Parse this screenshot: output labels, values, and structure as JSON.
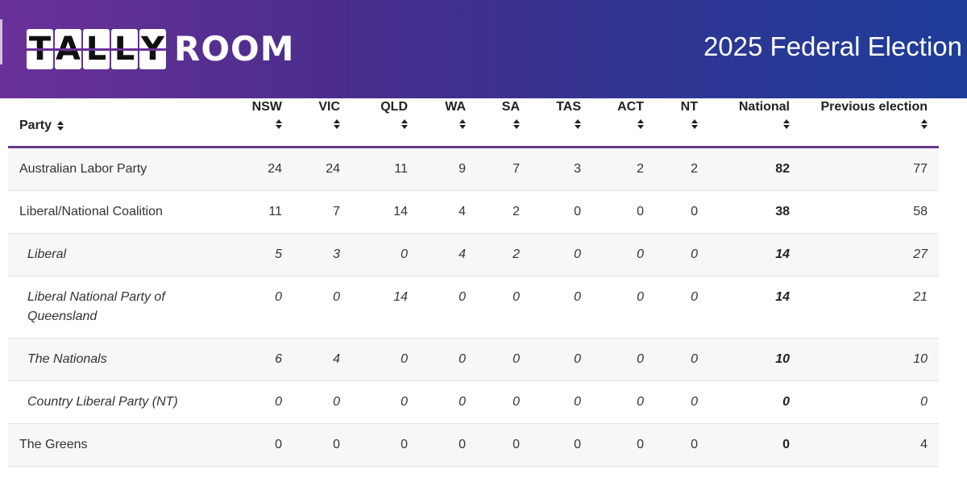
{
  "header": {
    "logo_tally_letters": [
      "T",
      "A",
      "L",
      "L",
      "Y"
    ],
    "logo_room": "ROOM",
    "title": "2025 Federal Election"
  },
  "table": {
    "columns": {
      "party": "Party",
      "nsw": "NSW",
      "vic": "VIC",
      "qld": "QLD",
      "wa": "WA",
      "sa": "SA",
      "tas": "TAS",
      "act": "ACT",
      "nt": "NT",
      "national": "National",
      "previous": "Previous election"
    },
    "rows": [
      {
        "party": "Australian Labor Party",
        "nsw": "24",
        "vic": "24",
        "qld": "11",
        "wa": "9",
        "sa": "7",
        "tas": "3",
        "act": "2",
        "nt": "2",
        "national": "82",
        "previous": "77"
      },
      {
        "party": "Liberal/National Coalition",
        "nsw": "11",
        "vic": "7",
        "qld": "14",
        "wa": "4",
        "sa": "2",
        "tas": "0",
        "act": "0",
        "nt": "0",
        "national": "38",
        "previous": "58"
      },
      {
        "party": "Liberal",
        "nsw": "5",
        "vic": "3",
        "qld": "0",
        "wa": "4",
        "sa": "2",
        "tas": "0",
        "act": "0",
        "nt": "0",
        "national": "14",
        "previous": "27"
      },
      {
        "party": "Liberal National Party of Queensland",
        "nsw": "0",
        "vic": "0",
        "qld": "14",
        "wa": "0",
        "sa": "0",
        "tas": "0",
        "act": "0",
        "nt": "0",
        "national": "14",
        "previous": "21"
      },
      {
        "party": "The Nationals",
        "nsw": "6",
        "vic": "4",
        "qld": "0",
        "wa": "0",
        "sa": "0",
        "tas": "0",
        "act": "0",
        "nt": "0",
        "national": "10",
        "previous": "10"
      },
      {
        "party": "Country Liberal Party (NT)",
        "nsw": "0",
        "vic": "0",
        "qld": "0",
        "wa": "0",
        "sa": "0",
        "tas": "0",
        "act": "0",
        "nt": "0",
        "national": "0",
        "previous": "0"
      },
      {
        "party": "The Greens",
        "nsw": "0",
        "vic": "0",
        "qld": "0",
        "wa": "0",
        "sa": "0",
        "tas": "0",
        "act": "0",
        "nt": "0",
        "national": "0",
        "previous": "4"
      }
    ]
  }
}
